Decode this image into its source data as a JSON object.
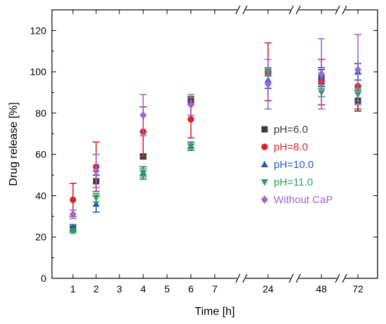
{
  "chart_data": {
    "type": "scatter",
    "xlabel": "Time [h]",
    "ylabel": "Drug release [%]",
    "ylim": [
      0,
      130
    ],
    "yticks": [
      0,
      20,
      40,
      60,
      80,
      100,
      120
    ],
    "xticks": [
      "1",
      "2",
      "3",
      "4",
      "5",
      "6",
      "7",
      "24",
      "48",
      "72"
    ],
    "x_axis_breaks": true,
    "legend_position": "right-middle",
    "series": [
      {
        "name": "pH=6.0",
        "color": "#3a3a3a",
        "marker": "square",
        "points": [
          {
            "x": "1",
            "y": 24,
            "err": 2
          },
          {
            "x": "2",
            "y": 47,
            "err": 3
          },
          {
            "x": "4",
            "y": 59,
            "err": 1
          },
          {
            "x": "6",
            "y": 86,
            "err": 2
          },
          {
            "x": "24",
            "y": 100,
            "err": 2
          },
          {
            "x": "48",
            "y": 97,
            "err": 4
          },
          {
            "x": "72",
            "y": 86,
            "err": 5
          }
        ]
      },
      {
        "name": "pH=8.0",
        "color": "#d62728",
        "marker": "circle",
        "points": [
          {
            "x": "1",
            "y": 38,
            "err": 8
          },
          {
            "x": "2",
            "y": 54,
            "err": 12
          },
          {
            "x": "4",
            "y": 71,
            "err": 12
          },
          {
            "x": "6",
            "y": 77,
            "err": 9
          },
          {
            "x": "24",
            "y": 100,
            "err": 14
          },
          {
            "x": "48",
            "y": 95,
            "err": 11
          },
          {
            "x": "72",
            "y": 93,
            "err": 11
          }
        ]
      },
      {
        "name": "pH=10.0",
        "color": "#1f5fbf",
        "marker": "triangle-up",
        "points": [
          {
            "x": "1",
            "y": 24,
            "err": 2
          },
          {
            "x": "2",
            "y": 36,
            "err": 4
          },
          {
            "x": "4",
            "y": 51,
            "err": 3
          },
          {
            "x": "6",
            "y": 64,
            "err": 2
          },
          {
            "x": "24",
            "y": 96,
            "err": 4
          },
          {
            "x": "48",
            "y": 98,
            "err": 4
          },
          {
            "x": "72",
            "y": 100,
            "err": 4
          }
        ]
      },
      {
        "name": "pH=11.0",
        "color": "#2ca05a",
        "marker": "triangle-down",
        "points": [
          {
            "x": "1",
            "y": 23,
            "err": 1
          },
          {
            "x": "2",
            "y": 39,
            "err": 2
          },
          {
            "x": "4",
            "y": 51,
            "err": 2
          },
          {
            "x": "6",
            "y": 64,
            "err": 1
          },
          {
            "x": "24",
            "y": 100,
            "err": 2
          },
          {
            "x": "48",
            "y": 90,
            "err": 2
          },
          {
            "x": "72",
            "y": 89,
            "err": 3
          }
        ]
      },
      {
        "name": "Without CaP",
        "color": "#a066d3",
        "marker": "diamond",
        "points": [
          {
            "x": "1",
            "y": 31,
            "err": 2
          },
          {
            "x": "2",
            "y": 52,
            "err": 8
          },
          {
            "x": "4",
            "y": 79,
            "err": 10
          },
          {
            "x": "6",
            "y": 84,
            "err": 5
          },
          {
            "x": "24",
            "y": 94,
            "err": 12
          },
          {
            "x": "48",
            "y": 99,
            "err": 17
          },
          {
            "x": "72",
            "y": 101,
            "err": 17
          }
        ]
      }
    ]
  }
}
